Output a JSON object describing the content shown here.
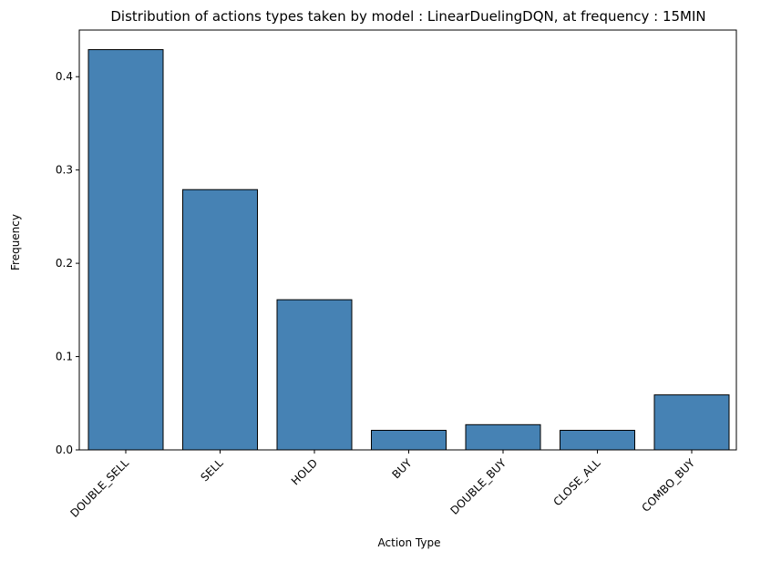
{
  "chart_data": {
    "type": "bar",
    "title": "Distribution of actions types taken by model : LinearDuelingDQN, at frequency : 15MIN",
    "xlabel": "Action Type",
    "ylabel": "Frequency",
    "categories": [
      "DOUBLE_SELL",
      "SELL",
      "HOLD",
      "BUY",
      "DOUBLE_BUY",
      "CLOSE_ALL",
      "COMBO_BUY"
    ],
    "values": [
      0.429,
      0.279,
      0.161,
      0.021,
      0.027,
      0.021,
      0.059
    ],
    "ylim": [
      0,
      0.45
    ],
    "yticks": [
      "0.0",
      "0.1",
      "0.2",
      "0.3",
      "0.4"
    ],
    "grid": false,
    "legend": "none",
    "colors": {
      "bar_fill": "#4682b4",
      "bar_edge": "#000000",
      "axis": "#000000"
    }
  }
}
